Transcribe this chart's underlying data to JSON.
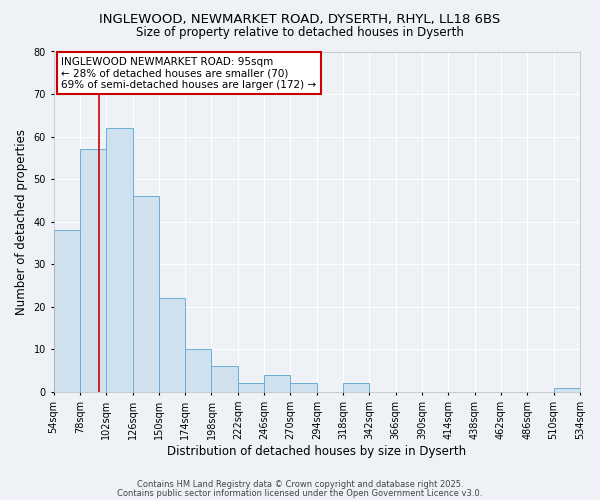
{
  "title_line1": "INGLEWOOD, NEWMARKET ROAD, DYSERTH, RHYL, LL18 6BS",
  "title_line2": "Size of property relative to detached houses in Dyserth",
  "xlabel": "Distribution of detached houses by size in Dyserth",
  "ylabel": "Number of detached properties",
  "bin_edges": [
    54,
    78,
    102,
    126,
    150,
    174,
    198,
    222,
    246,
    270,
    294,
    318,
    342,
    366,
    390,
    414,
    438,
    462,
    486,
    510,
    534
  ],
  "bin_counts": [
    38,
    57,
    62,
    46,
    22,
    10,
    6,
    2,
    4,
    2,
    0,
    2,
    0,
    0,
    0,
    0,
    0,
    0,
    0,
    1
  ],
  "bar_facecolor": "#cfe0ef",
  "bar_edgecolor": "#6baed6",
  "vline_x": 95,
  "vline_color": "#cc0000",
  "annotation_box_text": "INGLEWOOD NEWMARKET ROAD: 95sqm\n← 28% of detached houses are smaller (70)\n69% of semi-detached houses are larger (172) →",
  "annotation_box_facecolor": "#ffffff",
  "annotation_box_edgecolor": "#cc0000",
  "ylim": [
    0,
    80
  ],
  "yticks": [
    0,
    10,
    20,
    30,
    40,
    50,
    60,
    70,
    80
  ],
  "background_color": "#eef2f7",
  "plot_bg_color": "#eef2f7",
  "grid_color": "#ffffff",
  "footer_line1": "Contains HM Land Registry data © Crown copyright and database right 2025.",
  "footer_line2": "Contains public sector information licensed under the Open Government Licence v3.0.",
  "tick_label_fontsize": 7,
  "axis_label_fontsize": 8.5,
  "title_fontsize1": 9.5,
  "title_fontsize2": 8.5,
  "annotation_fontsize": 7.5
}
